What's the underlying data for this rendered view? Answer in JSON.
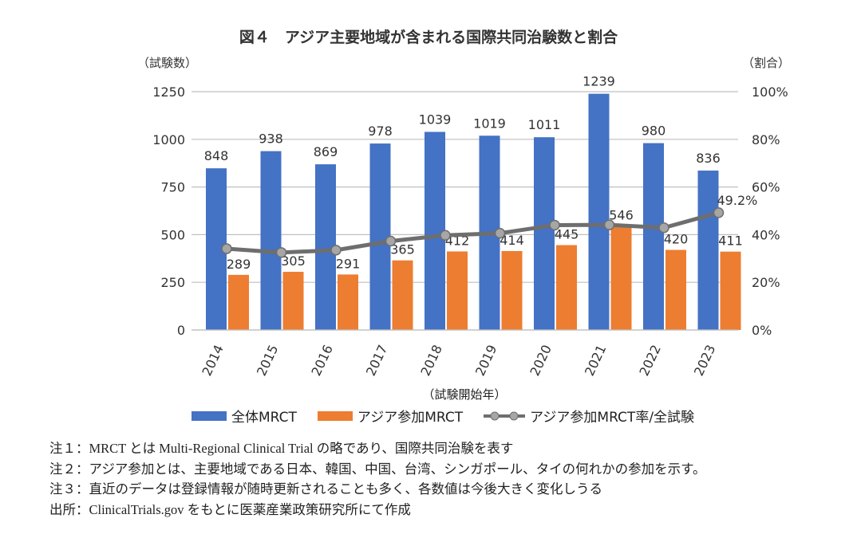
{
  "chart_data": {
    "type": "bar",
    "title": "図４　アジア主要地域が含まれる国際共同治験数と割合",
    "xlabel": "（試験開始年）",
    "ylabel": "（試験数）",
    "y2label": "（割合）",
    "categories": [
      "2014",
      "2015",
      "2016",
      "2017",
      "2018",
      "2019",
      "2020",
      "2021",
      "2022",
      "2023"
    ],
    "ylim": [
      0,
      1250
    ],
    "yticks": [
      0,
      250,
      500,
      750,
      1000,
      1250
    ],
    "y2lim": [
      0,
      100
    ],
    "y2ticks": [
      "0%",
      "20%",
      "40%",
      "60%",
      "80%",
      "100%"
    ],
    "grid": true,
    "legend_position": "bottom",
    "series": [
      {
        "name": "全体MRCT",
        "type": "bar",
        "color": "#4472C4",
        "values": [
          848,
          938,
          869,
          978,
          1039,
          1019,
          1011,
          1239,
          980,
          836
        ]
      },
      {
        "name": "アジア参加MRCT",
        "type": "bar",
        "color": "#ED7D31",
        "values": [
          289,
          305,
          291,
          365,
          412,
          414,
          445,
          546,
          420,
          411
        ]
      },
      {
        "name": "アジア参加MRCT率/全試験",
        "type": "line",
        "axis": "right",
        "color": "#6E6E6E",
        "values": [
          34.1,
          32.5,
          33.5,
          37.3,
          39.7,
          40.6,
          44.0,
          44.1,
          42.9,
          49.2
        ],
        "labels": [
          "",
          "",
          "",
          "",
          "",
          "",
          "",
          "",
          "",
          "49.2%"
        ]
      }
    ]
  },
  "notes": [
    "注１：MRCT とは Multi-Regional Clinical Trial の略であり、国際共同治験を表す",
    "注２：アジア参加とは、主要地域である日本、韓国、中国、台湾、シンガポール、タイの何れかの参加を示す。",
    "注３：直近のデータは登録情報が随時更新されることも多く、各数値は今後大きく変化しうる",
    "出所：ClinicalTrials.gov をもとに医薬産業政策研究所にて作成"
  ]
}
